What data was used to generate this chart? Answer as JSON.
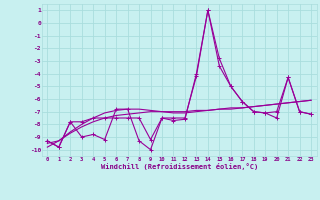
{
  "x_labels": [
    0,
    1,
    2,
    3,
    4,
    5,
    6,
    7,
    8,
    9,
    10,
    11,
    12,
    13,
    14,
    15,
    16,
    17,
    18,
    19,
    20,
    21,
    22,
    23
  ],
  "line1": [
    -9.3,
    -9.8,
    -7.8,
    -9.0,
    -8.8,
    -9.2,
    -6.8,
    -6.8,
    -9.3,
    -10.0,
    -7.5,
    -7.7,
    -7.6,
    -4.0,
    1.0,
    -3.4,
    -5.0,
    -6.2,
    -7.0,
    -7.1,
    -7.5,
    -4.3,
    -7.0,
    -7.2
  ],
  "line2": [
    -9.3,
    -9.8,
    -7.8,
    -7.8,
    -7.5,
    -7.5,
    -7.5,
    -7.5,
    -7.5,
    -9.2,
    -7.5,
    -7.5,
    -7.5,
    -4.2,
    1.0,
    -2.8,
    -5.0,
    -6.2,
    -7.0,
    -7.1,
    -7.0,
    -4.3,
    -7.0,
    -7.2
  ],
  "line3": [
    -9.5,
    -9.3,
    -8.7,
    -8.2,
    -7.8,
    -7.5,
    -7.3,
    -7.2,
    -7.1,
    -7.0,
    -7.0,
    -7.0,
    -7.0,
    -6.9,
    -6.9,
    -6.8,
    -6.8,
    -6.7,
    -6.6,
    -6.5,
    -6.4,
    -6.3,
    -6.2,
    -6.1
  ],
  "line4": [
    -9.8,
    -9.3,
    -8.6,
    -8.0,
    -7.5,
    -7.1,
    -6.9,
    -6.8,
    -6.8,
    -6.9,
    -7.0,
    -7.1,
    -7.1,
    -7.0,
    -6.9,
    -6.8,
    -6.7,
    -6.7,
    -6.6,
    -6.5,
    -6.4,
    -6.3,
    -6.2,
    -6.1
  ],
  "bg_color": "#c8f0f0",
  "grid_color": "#aadddd",
  "line_color": "#990099",
  "ylim": [
    -10.5,
    1.5
  ],
  "yticks": [
    1,
    0,
    -1,
    -2,
    -3,
    -4,
    -5,
    -6,
    -7,
    -8,
    -9,
    -10
  ],
  "xlabel": "Windchill (Refroidissement éolien,°C)",
  "font_color": "#880088",
  "figsize": [
    3.2,
    2.0
  ],
  "dpi": 100
}
